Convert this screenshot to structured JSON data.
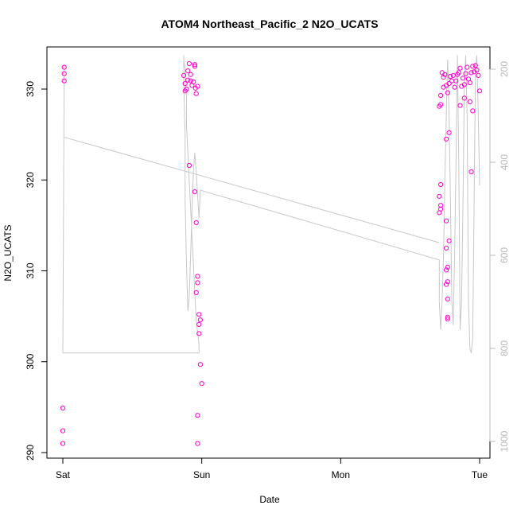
{
  "chart_data": {
    "type": "scatter",
    "title": "ATOM4 Northeast_Pacific_2 N2O_UCATS",
    "xlabel": "Date",
    "ylabel": "N2O_UCATS",
    "x_ticks": [
      "Sat",
      "Sun",
      "Mon",
      "Tue"
    ],
    "y_ticks": [
      290,
      300,
      310,
      320,
      330
    ],
    "ylim": [
      289.5,
      334.5
    ],
    "xlim_days": [
      -0.07,
      3.07
    ],
    "y2_ticks": [
      200,
      400,
      600,
      800,
      1000
    ],
    "y2lim": [
      1020,
      170
    ],
    "grid": false,
    "colors": {
      "points": "#ff00cc",
      "pressure": "#c8c8c8",
      "axes": "#000000",
      "right_axis": "#b8b8b8"
    },
    "series": [
      {
        "day": 0,
        "points": [
          [
            0.01,
            332.4
          ],
          [
            0.01,
            331.7
          ],
          [
            0.01,
            330.9
          ],
          [
            0.0,
            294.9
          ],
          [
            0.0,
            292.4
          ],
          [
            0.0,
            291.0
          ]
        ]
      },
      {
        "day": 1,
        "points": [
          [
            0.87,
            331.5
          ],
          [
            0.88,
            330.6
          ],
          [
            0.89,
            330.0
          ],
          [
            0.9,
            332.0
          ],
          [
            0.91,
            332.8
          ],
          [
            0.92,
            331.6
          ],
          [
            0.93,
            330.4
          ],
          [
            0.94,
            330.8
          ],
          [
            0.95,
            332.7
          ],
          [
            0.955,
            330.1
          ],
          [
            0.96,
            329.5
          ],
          [
            0.97,
            330.3
          ],
          [
            0.88,
            329.8
          ],
          [
            0.9,
            331.0
          ],
          [
            0.92,
            330.9
          ],
          [
            0.95,
            332.5
          ],
          [
            0.91,
            321.6
          ],
          [
            0.95,
            318.7
          ],
          [
            0.96,
            315.3
          ],
          [
            0.97,
            309.4
          ],
          [
            0.97,
            308.7
          ],
          [
            0.96,
            307.6
          ],
          [
            0.98,
            305.2
          ],
          [
            0.99,
            304.6
          ],
          [
            0.98,
            304.1
          ],
          [
            0.98,
            303.1
          ],
          [
            0.99,
            299.7
          ],
          [
            1.0,
            297.6
          ],
          [
            0.97,
            294.1
          ],
          [
            0.97,
            291.0
          ]
        ]
      },
      {
        "day": 2,
        "points": [
          [
            2.72,
            329.3
          ],
          [
            2.71,
            328.1
          ],
          [
            2.72,
            328.3
          ],
          [
            2.73,
            331.8
          ],
          [
            2.74,
            331.3
          ],
          [
            2.75,
            331.6
          ],
          [
            2.74,
            330.2
          ],
          [
            2.76,
            330.4
          ],
          [
            2.77,
            329.6
          ],
          [
            2.78,
            330.6
          ],
          [
            2.79,
            331.4
          ],
          [
            2.8,
            330.9
          ],
          [
            2.81,
            331.5
          ],
          [
            2.82,
            330.2
          ],
          [
            2.83,
            330.9
          ],
          [
            2.84,
            331.6
          ],
          [
            2.85,
            331.8
          ],
          [
            2.86,
            332.3
          ],
          [
            2.87,
            330.3
          ],
          [
            2.88,
            331.2
          ],
          [
            2.89,
            330.5
          ],
          [
            2.9,
            331.7
          ],
          [
            2.91,
            332.4
          ],
          [
            2.92,
            331.1
          ],
          [
            2.93,
            330.7
          ],
          [
            2.94,
            331.8
          ],
          [
            2.95,
            332.5
          ],
          [
            2.96,
            331.9
          ],
          [
            2.97,
            332.6
          ],
          [
            2.98,
            332.1
          ],
          [
            2.99,
            331.5
          ],
          [
            3.0,
            329.8
          ],
          [
            2.86,
            328.2
          ],
          [
            2.89,
            329.0
          ],
          [
            2.93,
            328.6
          ],
          [
            2.95,
            327.6
          ],
          [
            2.78,
            325.2
          ],
          [
            2.76,
            324.5
          ],
          [
            2.94,
            320.9
          ],
          [
            2.72,
            319.5
          ],
          [
            2.71,
            318.2
          ],
          [
            2.72,
            317.2
          ],
          [
            2.72,
            316.8
          ],
          [
            2.71,
            316.4
          ],
          [
            2.76,
            315.5
          ],
          [
            2.78,
            313.3
          ],
          [
            2.76,
            312.5
          ],
          [
            2.77,
            310.4
          ],
          [
            2.76,
            310.1
          ],
          [
            2.77,
            308.8
          ],
          [
            2.76,
            308.5
          ],
          [
            2.77,
            306.9
          ],
          [
            2.77,
            304.9
          ],
          [
            2.77,
            304.7
          ]
        ]
      }
    ],
    "pressure_line": {
      "x": [
        0.0,
        0.01,
        0.01,
        0.98,
        0.98,
        0.96,
        0.95,
        0.94,
        0.93,
        0.92,
        0.91,
        0.9,
        0.89,
        0.89,
        0.88,
        0.88,
        0.87,
        0.87,
        0.87,
        0.88,
        0.88,
        0.89,
        0.9,
        0.91,
        0.92,
        0.93,
        0.94,
        0.95,
        0.96,
        0.97,
        0.98,
        0.99,
        2.71,
        2.71,
        2.72,
        2.73,
        2.74,
        2.75,
        2.76,
        2.77,
        2.78,
        2.79,
        2.8,
        2.81,
        2.82,
        2.83,
        2.84,
        2.85,
        2.86,
        2.87,
        2.88,
        2.89,
        2.9,
        2.91,
        2.92,
        2.93,
        2.94,
        2.95,
        2.96,
        2.97,
        2.98,
        2.99,
        3.0
      ],
      "p": [
        810,
        810,
        810,
        810,
        790,
        740,
        680,
        620,
        560,
        500,
        440,
        380,
        320,
        260,
        220,
        200,
        180,
        170,
        230,
        340,
        480,
        620,
        720,
        690,
        600,
        500,
        420,
        380,
        420,
        470,
        520,
        460,
        610,
        700,
        760,
        700,
        600,
        440,
        300,
        180,
        300,
        480,
        700,
        750,
        600,
        400,
        170,
        400,
        760,
        700,
        500,
        230,
        170,
        300,
        700,
        800,
        810,
        780,
        500,
        200,
        170,
        300,
        450
      ],
      "x_start": [
        0.0,
        0.01
      ],
      "p_start": [
        810,
        190
      ]
    }
  }
}
